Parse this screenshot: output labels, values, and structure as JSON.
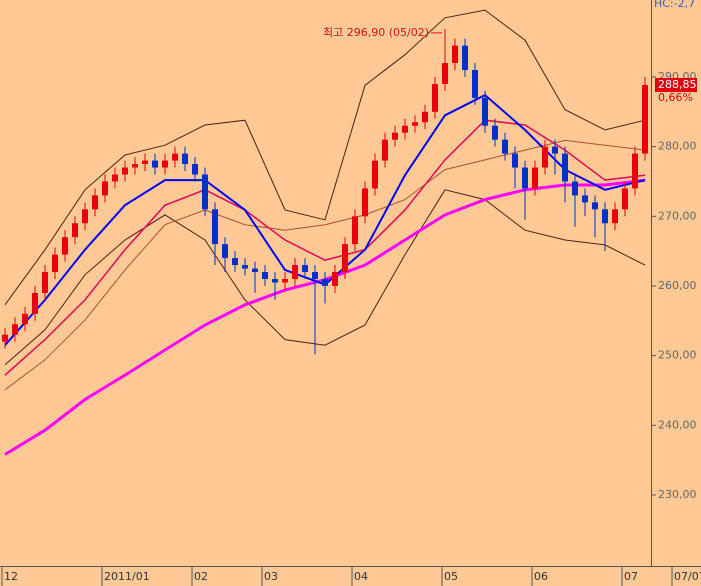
{
  "chart_data": {
    "type": "candlestick",
    "corner_label": "HC:-2,7",
    "max_annotation": "최고 296,90 (05/02)",
    "last_label": "288,85",
    "change_label": "0,66%",
    "up_color": "#e8000b",
    "down_color": "#0030c8",
    "ylim": [
      219.8,
      301.05
    ],
    "xlim": [
      -0.5,
      64.5
    ],
    "yticks": [
      {
        "value": 230,
        "label": "230,00"
      },
      {
        "value": 240,
        "label": "240,00"
      },
      {
        "value": 250,
        "label": "250,00"
      },
      {
        "value": 260,
        "label": "260,00"
      },
      {
        "value": 270,
        "label": "270,00"
      },
      {
        "value": 280,
        "label": "280,00"
      },
      {
        "value": 290,
        "label": "290,00"
      }
    ],
    "xticks": [
      {
        "value": 0,
        "label": "12"
      },
      {
        "value": 10,
        "label": "2011/01"
      },
      {
        "value": 19,
        "label": "02"
      },
      {
        "value": 26,
        "label": "03"
      },
      {
        "value": 35,
        "label": "04"
      },
      {
        "value": 44,
        "label": "05"
      },
      {
        "value": 53,
        "label": "06"
      },
      {
        "value": 62,
        "label": "07"
      },
      {
        "value": 67,
        "label": "07/07"
      }
    ],
    "open": [
      252,
      253,
      254.5,
      256,
      259,
      262,
      264.5,
      267,
      269,
      271,
      273,
      275,
      276,
      277,
      277.5,
      278,
      277,
      278,
      279,
      277.5,
      276,
      271,
      266,
      264,
      263,
      262.5,
      262,
      261,
      260.5,
      261,
      263,
      262,
      261,
      260,
      262,
      266,
      270,
      274,
      278,
      281,
      282,
      283,
      283.5,
      285,
      289,
      292,
      294.5,
      291,
      287,
      283,
      281,
      279,
      277,
      274,
      277,
      280,
      279,
      275,
      273,
      272,
      271,
      269,
      271,
      274,
      279
    ],
    "high": [
      254,
      255.5,
      257,
      260,
      263,
      265.5,
      268,
      270,
      272,
      274,
      276,
      277,
      278,
      278.5,
      279,
      279,
      279,
      280,
      280,
      278.5,
      277,
      272,
      267,
      265,
      264,
      263.5,
      263,
      262,
      262,
      264,
      264,
      263,
      262,
      263,
      267,
      271,
      275,
      279,
      282,
      283,
      284,
      284.5,
      286,
      290,
      296.9,
      295.5,
      295.5,
      292,
      288,
      284,
      282,
      280,
      278,
      278,
      281,
      281,
      280,
      276,
      274,
      273,
      272,
      272,
      275,
      280,
      290
    ],
    "low": [
      251,
      252,
      253.5,
      255,
      258,
      261,
      263.5,
      266,
      268,
      270,
      272,
      274,
      275,
      276,
      276.5,
      276,
      276,
      277,
      276.5,
      275,
      270,
      263,
      262,
      262,
      261.5,
      259,
      260,
      258,
      259.5,
      260,
      261,
      250.2,
      257.5,
      259,
      261,
      265,
      269,
      273,
      277,
      280,
      281,
      282,
      282.5,
      284,
      288,
      291,
      290,
      286,
      282,
      280,
      278,
      274,
      269.5,
      273,
      276,
      276,
      272,
      268.5,
      270,
      267,
      265,
      268,
      270,
      273,
      278
    ],
    "close": [
      253,
      254.5,
      256,
      259,
      262,
      264.5,
      267,
      269,
      271,
      273,
      275,
      276,
      277,
      277.5,
      278,
      277,
      278,
      279,
      277.5,
      276,
      271,
      266,
      264,
      263,
      262.5,
      262,
      261,
      260.5,
      261,
      263,
      262,
      261,
      260,
      262,
      266,
      270,
      274,
      278,
      281,
      282,
      283,
      283.5,
      285,
      289,
      292,
      294.5,
      291,
      287,
      283,
      281,
      279,
      277,
      274,
      277,
      280,
      279,
      275,
      273,
      272,
      271,
      269,
      271,
      274,
      279,
      288.85
    ],
    "overlay_x": [
      0,
      4,
      8,
      12,
      16,
      20,
      24,
      28,
      32,
      36,
      40,
      44,
      48,
      52,
      56,
      60,
      64
    ],
    "overlays": [
      {
        "color": "#5a1a10",
        "values": [
          257.3,
          265.2,
          273.8,
          278.8,
          280.2,
          283.1,
          283.8,
          270.9,
          269.5,
          288.8,
          293.2,
          298.5,
          299.6,
          295.3,
          285.3,
          282.4,
          283.8
        ]
      },
      {
        "color": "#5a1a10",
        "values": [
          248.7,
          253.7,
          261.6,
          266.6,
          270.2,
          266.6,
          258.0,
          252.3,
          251.5,
          254.4,
          264.5,
          273.8,
          272.4,
          268.0,
          266.6,
          265.9,
          263.0
        ]
      },
      {
        "color": "#b0502a",
        "values": [
          245.1,
          249.4,
          255.1,
          262.3,
          268.8,
          270.9,
          268.8,
          268.0,
          268.8,
          270.2,
          272.4,
          276.7,
          278.1,
          279.5,
          280.9,
          280.2,
          279.5
        ]
      },
      {
        "color": "#ff00ff",
        "values": [
          235.8,
          239.3,
          243.7,
          247.2,
          250.8,
          254.4,
          257.3,
          259.4,
          260.9,
          263.0,
          266.6,
          270.2,
          272.4,
          273.8,
          274.5,
          274.5,
          275.2
        ]
      },
      {
        "color": "#e0105a",
        "values": [
          247.2,
          252.3,
          258.0,
          265.2,
          271.6,
          273.8,
          270.9,
          266.6,
          263.7,
          265.2,
          270.9,
          278.1,
          283.8,
          283.1,
          279.5,
          275.2,
          275.9
        ]
      },
      {
        "color": "#0000ff",
        "values": [
          251.5,
          258.0,
          265.2,
          271.6,
          275.2,
          275.2,
          270.9,
          262.3,
          260.2,
          265.2,
          275.9,
          284.5,
          287.4,
          282.4,
          276.7,
          273.8,
          275.2
        ]
      }
    ]
  }
}
